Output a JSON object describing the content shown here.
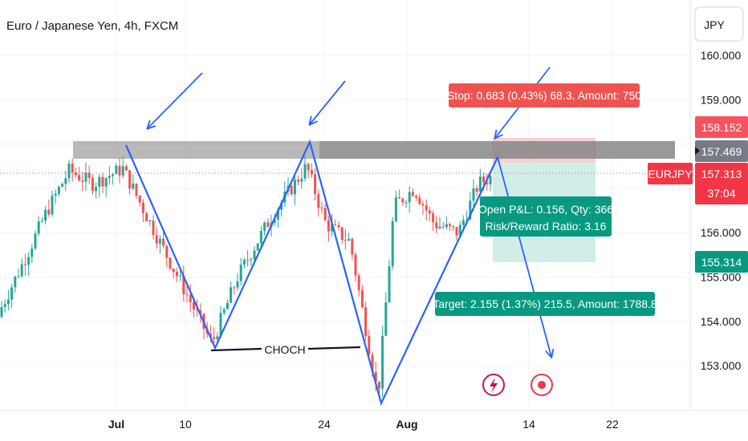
{
  "chart_title": "Euro / Japanese Yen, 4h, FXCM",
  "currency_button": "JPY",
  "symbol_tag": "EURJPY",
  "price_tags": {
    "stop": "158.152",
    "entry": "157.469",
    "last": "157.313",
    "countdown": "37:04",
    "target": "155.314"
  },
  "annotations": {
    "stop_label": "Stop: 0.683 (0.43%) 68.3, Amount: 750",
    "pnl_line1": "Open P&L: 0.156, Qty: 366",
    "pnl_line2": "Risk/Reward Ratio: 3.16",
    "target_label": "Target: 2.155 (1.37%) 215.5, Amount: 1788.8",
    "choch": "CHOCH"
  },
  "colors": {
    "up": "#26a69a",
    "down": "#ef5350",
    "drawing": "#2962ff",
    "stop_zone": "#f7c9cc",
    "target_zone": "#c9eae3",
    "resistance": "#8a8a8a"
  },
  "icons": [
    "lightning-icon",
    "record-icon"
  ],
  "chart_data": {
    "type": "candlestick",
    "title": "Euro / Japanese Yen, 4h, FXCM",
    "xlabel": "",
    "ylabel": "",
    "x_ticks": [
      "Jul",
      "10",
      "24",
      "Aug",
      "14",
      "22"
    ],
    "y_ticks": [
      160.0,
      159.0,
      158.0,
      157.0,
      156.0,
      155.0,
      154.0,
      153.0
    ],
    "y_tick_labels": [
      "160.000",
      "159.000",
      "",
      "",
      "156.000",
      "155.000",
      "154.000",
      "153.000"
    ],
    "ylim": [
      152.2,
      160.9
    ],
    "last_price": 157.313,
    "swing_path": [
      {
        "x": "Jun 28",
        "y": 157.45
      },
      {
        "x": "Jul 11",
        "y": 153.45
      },
      {
        "x": "Jul 22",
        "y": 157.5
      },
      {
        "x": "Jul 30",
        "y": 152.2
      },
      {
        "x": "Aug 10",
        "y": 157.3
      }
    ],
    "resistance_zone": {
      "from": "Jun 21",
      "to": "Aug 27",
      "top": 157.5,
      "bottom": 157.1
    },
    "position": {
      "side": "short",
      "entry": 157.469,
      "stop": 158.152,
      "target": 155.314,
      "from": "Aug 9",
      "to": "Aug 19"
    },
    "choch_level": 153.45,
    "projection": {
      "from": 157.3,
      "to": 152.9
    }
  }
}
